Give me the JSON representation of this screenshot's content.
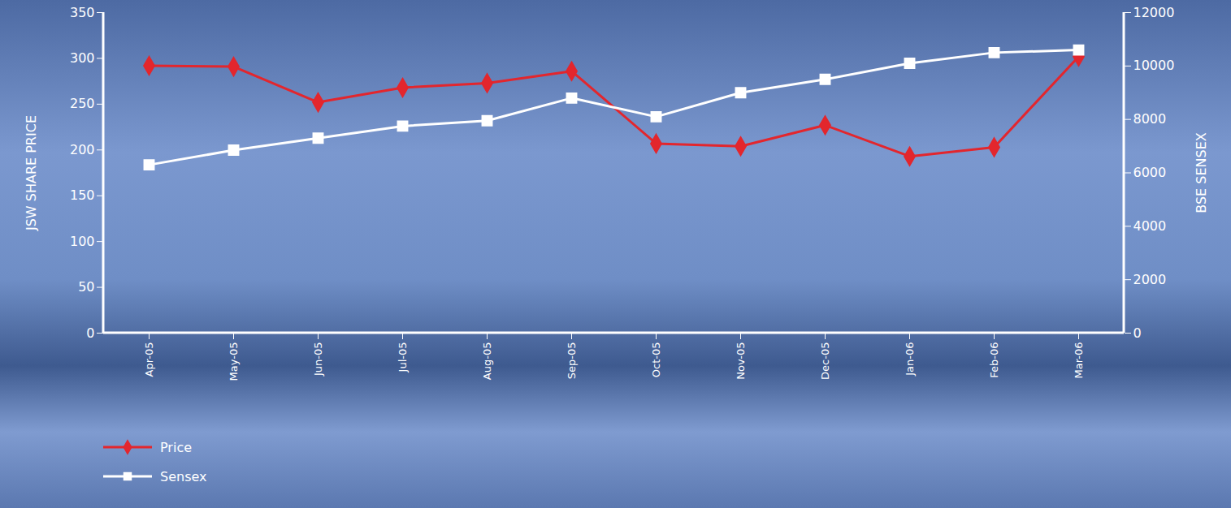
{
  "chart_data": {
    "type": "line",
    "categories": [
      "Apr-05",
      "May-05",
      "Jun-05",
      "Jul-05",
      "Aug-05",
      "Sep-05",
      "Oct-05",
      "Nov-05",
      "Dec-05",
      "Jan-06",
      "Feb-06",
      "Mar-06"
    ],
    "series": [
      {
        "name": "Price",
        "color": "#e3262d",
        "marker": "diamond",
        "values": [
          292,
          291,
          252,
          268,
          273,
          286,
          207,
          204,
          227,
          193,
          203,
          302
        ]
      },
      {
        "name": "Sensex",
        "color": "#ffffff",
        "marker": "square",
        "axis": "y2",
        "values": [
          6300,
          6850,
          7300,
          7750,
          7950,
          8800,
          8100,
          9000,
          9500,
          10100,
          10500,
          10600
        ]
      }
    ],
    "ylabel": "JSW SHARE PRICE",
    "y2label": "BSE SENSEX",
    "ylim": [
      0,
      350
    ],
    "yticks": [
      0,
      50,
      100,
      150,
      200,
      250,
      300,
      350
    ],
    "y2lim": [
      0,
      12000
    ],
    "y2ticks": [
      0,
      2000,
      4000,
      6000,
      8000,
      10000,
      12000
    ],
    "grid": false,
    "legend": "bottom-left"
  }
}
